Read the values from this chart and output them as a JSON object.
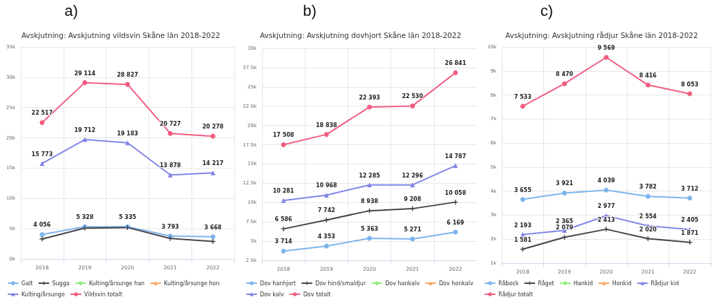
{
  "chart_data": [
    {
      "type": "line",
      "title": "Avskjutning: Avskjutning vildsvin Skåne län 2018-2022",
      "annotations": [
        "a)"
      ],
      "categories": [
        "2018",
        "2019",
        "2020",
        "2021",
        "2022"
      ],
      "ylim": [
        0,
        35000
      ],
      "yticks": [
        {
          "value": 0,
          "label": "0k"
        },
        {
          "value": 5000,
          "label": "5k"
        },
        {
          "value": 10000,
          "label": "10k"
        },
        {
          "value": 15000,
          "label": "15k"
        },
        {
          "value": 20000,
          "label": "20k"
        },
        {
          "value": 25000,
          "label": "25k"
        },
        {
          "value": 30000,
          "label": "30k"
        },
        {
          "value": 35000,
          "label": "35k"
        }
      ],
      "grid": true,
      "legend": "bottom",
      "series": [
        {
          "name": "Galt",
          "color": "#7cb5ec",
          "marker": "circle",
          "values": [
            4056,
            5328,
            5335,
            3793,
            3668
          ],
          "value_labels": [
            "4 056",
            "5 328",
            "5 335",
            "3 793",
            "3 668"
          ]
        },
        {
          "name": "Sugga",
          "color": "#434348",
          "marker": "cross",
          "values": [
            3300,
            5100,
            5200,
            3400,
            2900
          ]
        },
        {
          "name": "Kulting/årsunge han",
          "color": "#90ed7d",
          "marker": "circle",
          "values": [
            null,
            null,
            null,
            null,
            null
          ]
        },
        {
          "name": "Kulting/årsunge hon",
          "color": "#f7a35c",
          "marker": "triangle",
          "values": [
            null,
            null,
            null,
            null,
            null
          ]
        },
        {
          "name": "Kulting/årsunge",
          "color": "#8085e9",
          "marker": "triangle",
          "values": [
            15773,
            19712,
            19183,
            13878,
            14217
          ],
          "value_labels": [
            "15 773",
            "19 712",
            "19 183",
            "13 878",
            "14 217"
          ]
        },
        {
          "name": "Vildsvin totalt",
          "color": "#f15c80",
          "marker": "circle",
          "values": [
            22517,
            29114,
            28827,
            20727,
            20278
          ],
          "value_labels": [
            "22 517",
            "29 114",
            "28 827",
            "20 727",
            "20 278"
          ]
        }
      ]
    },
    {
      "type": "line",
      "title": "Avskjutning: Avskjutning dovhjort Skåne län 2018-2022",
      "annotations": [
        "b)"
      ],
      "categories": [
        "2018",
        "2019",
        "2020",
        "2021",
        "2022"
      ],
      "ylim": [
        2500,
        30000
      ],
      "yticks": [
        {
          "value": 2500,
          "label": "2.5k"
        },
        {
          "value": 5000,
          "label": "5k"
        },
        {
          "value": 7500,
          "label": "7.5k"
        },
        {
          "value": 10000,
          "label": "10k"
        },
        {
          "value": 12500,
          "label": "12.5k"
        },
        {
          "value": 15000,
          "label": "15k"
        },
        {
          "value": 17500,
          "label": "17.5k"
        },
        {
          "value": 20000,
          "label": "20k"
        },
        {
          "value": 22500,
          "label": "22.5k"
        },
        {
          "value": 25000,
          "label": "25k"
        },
        {
          "value": 27500,
          "label": "27.5k"
        },
        {
          "value": 30000,
          "label": "30k"
        }
      ],
      "grid": true,
      "legend": "bottom",
      "series": [
        {
          "name": "Dov hanhjort",
          "color": "#7cb5ec",
          "marker": "circle",
          "values": [
            3714,
            4353,
            5363,
            5271,
            6169
          ],
          "value_labels": [
            "3 714",
            "4 353",
            "5 363",
            "5 271",
            "6 169"
          ]
        },
        {
          "name": "Dov hind/smaldjur",
          "color": "#434348",
          "marker": "cross",
          "values": [
            6586,
            7742,
            8938,
            9208,
            10058
          ],
          "value_labels": [
            "6 586",
            "7 742",
            "8 938",
            "9 208",
            "10 058"
          ]
        },
        {
          "name": "Dov hankalv",
          "color": "#90ed7d",
          "marker": "circle",
          "values": [
            null,
            null,
            null,
            null,
            null
          ]
        },
        {
          "name": "Dov honkalv",
          "color": "#f7a35c",
          "marker": "triangle",
          "values": [
            null,
            null,
            null,
            null,
            null
          ]
        },
        {
          "name": "Dov kalv",
          "color": "#8085e9",
          "marker": "triangle",
          "values": [
            10281,
            10968,
            12285,
            12296,
            14787
          ],
          "value_labels": [
            "10 281",
            "10 968",
            "12 285",
            "12 296",
            "14 787"
          ]
        },
        {
          "name": "Dov totalt",
          "color": "#f15c80",
          "marker": "circle",
          "values": [
            17508,
            18838,
            22393,
            22530,
            26841
          ],
          "value_labels": [
            "17 508",
            "18 838",
            "22 393",
            "22 530",
            "26 841"
          ]
        }
      ]
    },
    {
      "type": "line",
      "title": "Avskjutning: Avskjutning rådjur Skåne län 2018-2022",
      "annotations": [
        "c)"
      ],
      "categories": [
        "2018",
        "2019",
        "2020",
        "2021",
        "2022"
      ],
      "ylim": [
        1000,
        10000
      ],
      "yticks": [
        {
          "value": 1000,
          "label": "1k"
        },
        {
          "value": 2000,
          "label": "2k"
        },
        {
          "value": 3000,
          "label": "3k"
        },
        {
          "value": 4000,
          "label": "4k"
        },
        {
          "value": 5000,
          "label": "5k"
        },
        {
          "value": 6000,
          "label": "6k"
        },
        {
          "value": 7000,
          "label": "7k"
        },
        {
          "value": 8000,
          "label": "8k"
        },
        {
          "value": 9000,
          "label": "9k"
        },
        {
          "value": 10000,
          "label": "10k"
        }
      ],
      "grid": true,
      "legend": "bottom",
      "series": [
        {
          "name": "Råbock",
          "color": "#7cb5ec",
          "marker": "circle",
          "values": [
            3655,
            3921,
            4039,
            3782,
            3712
          ],
          "value_labels": [
            "3 655",
            "3 921",
            "4 039",
            "3 782",
            "3 712"
          ]
        },
        {
          "name": "Råget",
          "color": "#434348",
          "marker": "cross",
          "values": [
            1581,
            2079,
            2413,
            2020,
            1871
          ],
          "value_labels": [
            "1 581",
            "2 079",
            "2 413",
            "2 020",
            "1 871"
          ]
        },
        {
          "name": "Hankid",
          "color": "#90ed7d",
          "marker": "circle",
          "values": [
            null,
            null,
            null,
            null,
            null
          ]
        },
        {
          "name": "Honkid",
          "color": "#f7a35c",
          "marker": "triangle",
          "values": [
            null,
            null,
            null,
            null,
            null
          ]
        },
        {
          "name": "Rådjur kid",
          "color": "#8085e9",
          "marker": "triangle",
          "values": [
            2193,
            2365,
            2977,
            2554,
            2405
          ],
          "value_labels": [
            "2 193",
            "2 365",
            "2 977",
            "2 554",
            "2 405"
          ]
        },
        {
          "name": "Rådjur totalt",
          "color": "#f15c80",
          "marker": "circle",
          "values": [
            7533,
            8470,
            9569,
            8416,
            8053
          ],
          "value_labels": [
            "7 533",
            "8 470",
            "9 569",
            "8 416",
            "8 053"
          ]
        }
      ]
    }
  ]
}
